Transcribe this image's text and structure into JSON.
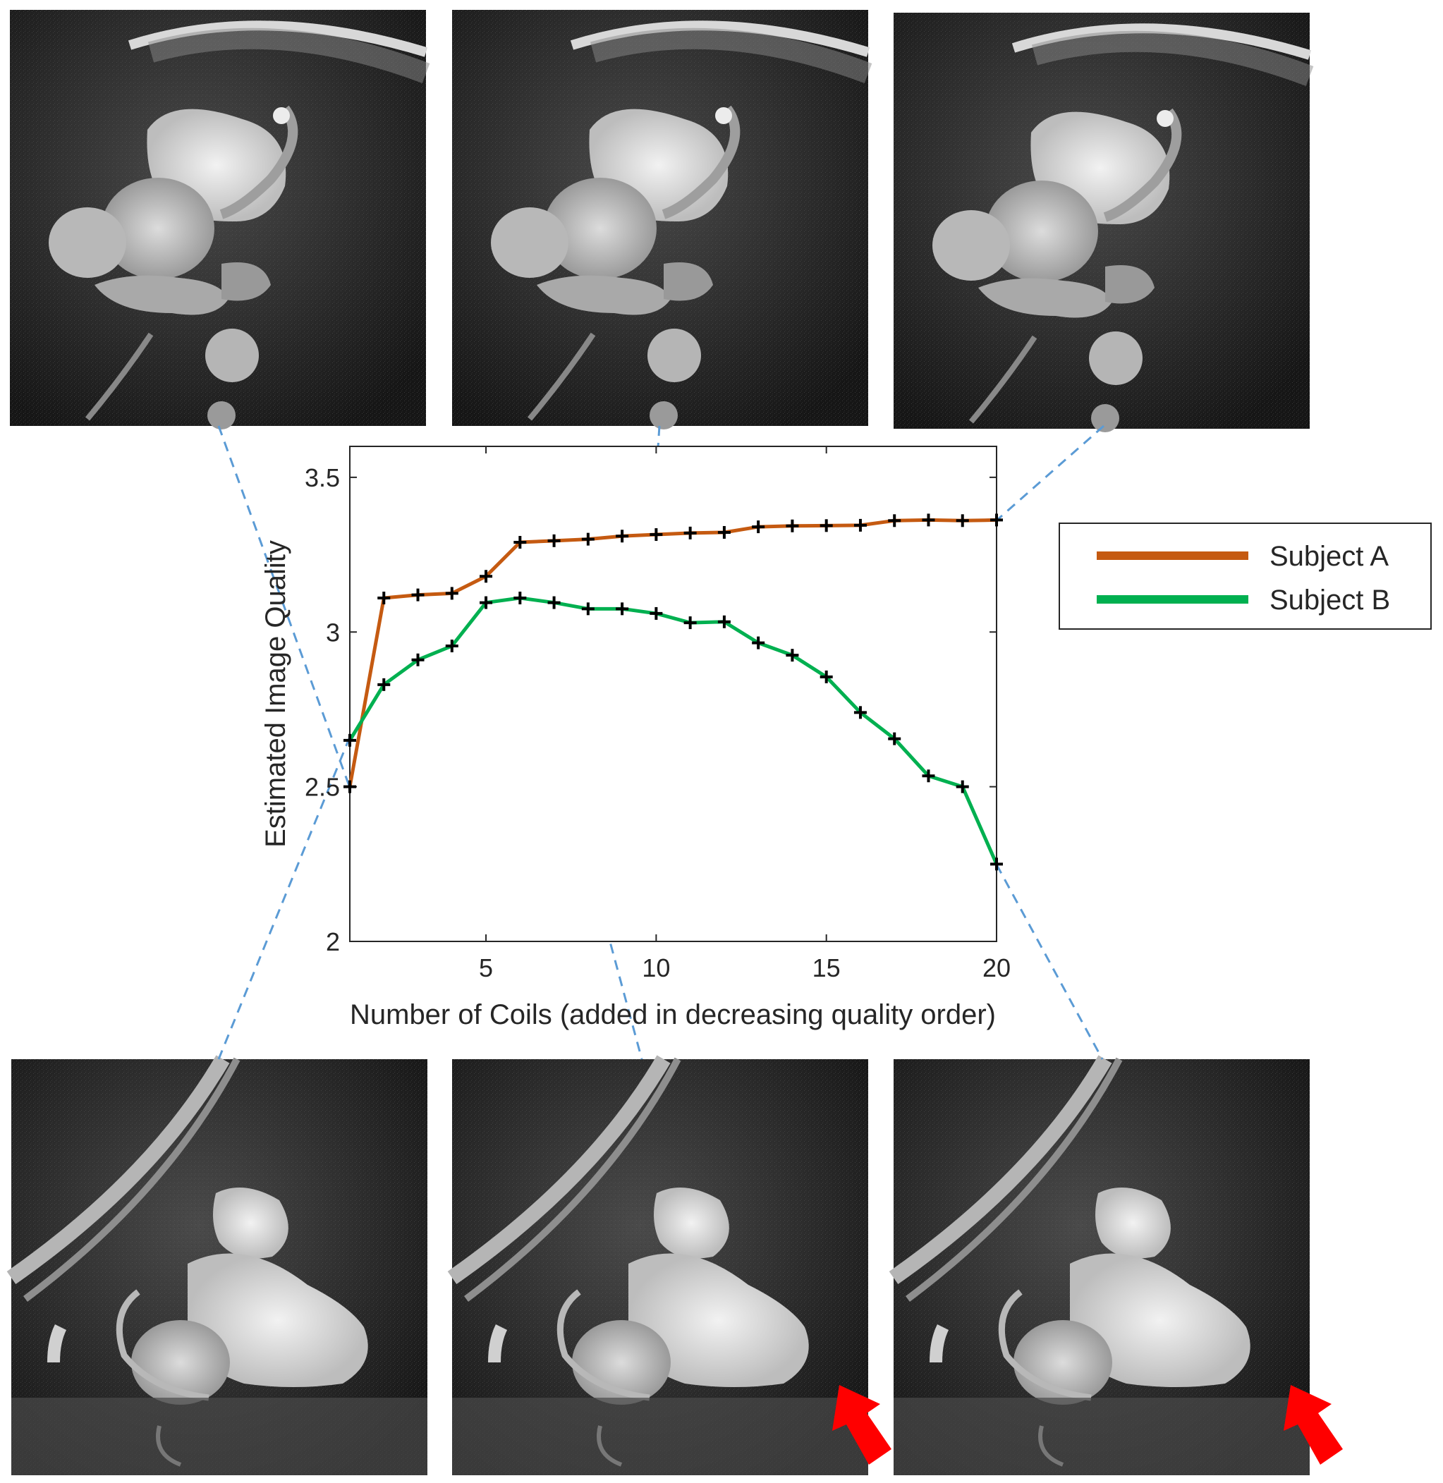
{
  "chart_data": {
    "type": "line",
    "title": "",
    "xlabel": "Number of Coils (added in decreasing quality order)",
    "ylabel": "Estimated Image Quality",
    "xlim": [
      1,
      20
    ],
    "ylim": [
      2,
      3.6
    ],
    "xticks": [
      5,
      10,
      15,
      20
    ],
    "yticks": [
      2,
      2.5,
      3,
      3.5
    ],
    "x": [
      1,
      2,
      3,
      4,
      5,
      6,
      7,
      8,
      9,
      10,
      11,
      12,
      13,
      14,
      15,
      16,
      17,
      18,
      19,
      20
    ],
    "grid": false,
    "legend_position": "right",
    "series": [
      {
        "name": "Subject A",
        "color": "#c55a11",
        "values": [
          2.5,
          3.11,
          3.12,
          3.125,
          3.18,
          3.29,
          3.295,
          3.3,
          3.31,
          3.315,
          3.32,
          3.322,
          3.34,
          3.343,
          3.344,
          3.345,
          3.36,
          3.362,
          3.36,
          3.362
        ]
      },
      {
        "name": "Subject B",
        "color": "#00b050",
        "values": [
          2.65,
          2.83,
          2.91,
          2.955,
          3.095,
          3.11,
          3.095,
          3.075,
          3.075,
          3.06,
          3.03,
          3.033,
          2.965,
          2.925,
          2.855,
          2.74,
          2.655,
          2.535,
          2.5,
          2.25
        ]
      }
    ],
    "marker": "plus",
    "marker_color": "#000000"
  },
  "panels": {
    "top_row": [
      "mri-subject-a-1-coil",
      "mri-subject-a-10-coils",
      "mri-subject-a-20-coils"
    ],
    "bottom_row": [
      "mri-subject-b-1-coil",
      "mri-subject-b-9-coils",
      "mri-subject-b-20-coils"
    ],
    "arrow_color": "#ff0000",
    "connector_color": "#5b9bd5"
  }
}
